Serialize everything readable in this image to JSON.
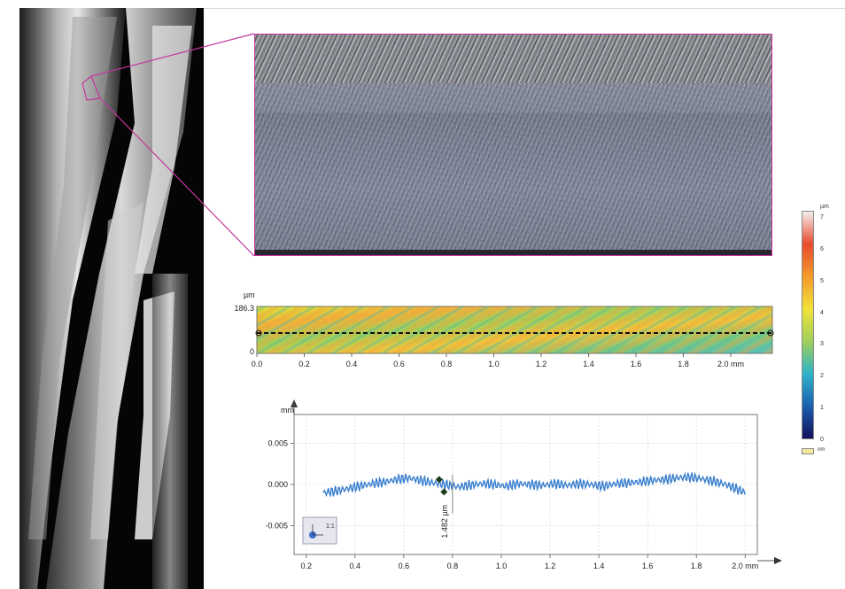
{
  "colormap": {
    "unit": "µm",
    "ticks": [
      "7",
      "6",
      "5",
      "4",
      "3",
      "2",
      "1",
      "0"
    ],
    "swatch_label": "nm",
    "colors": [
      "#f4eeee",
      "#e84a2c",
      "#f39a2c",
      "#f2e23a",
      "#9fd05a",
      "#2fb3c8",
      "#1b5fb0",
      "#13105a"
    ]
  },
  "topo_map": {
    "unit": "µm",
    "y_ticks": [
      "186.3",
      "0"
    ],
    "x_ticks": [
      "0.0",
      "0.2",
      "0.4",
      "0.6",
      "0.8",
      "1.0",
      "1.2",
      "1.4",
      "1.6",
      "1.8",
      "2.0 mm"
    ]
  },
  "profile": {
    "y_unit": "mm",
    "y_ticks": [
      "0.005",
      "0.000",
      "-0.005"
    ],
    "x_ticks": [
      "0.2",
      "0.4",
      "0.6",
      "0.8",
      "1.0",
      "1.2",
      "1.4",
      "1.6",
      "1.8",
      "2.0 mm"
    ],
    "measurement_label": "1.482 µm",
    "scale_badge": "1:1",
    "line_color": "#3a7fcf"
  },
  "chart_data": {
    "type": "line",
    "title": "",
    "xlabel": "mm",
    "ylabel": "mm",
    "xlim": [
      0.15,
      2.05
    ],
    "ylim": [
      -0.0085,
      0.0085
    ],
    "x": [
      0.27,
      0.32,
      0.37,
      0.42,
      0.47,
      0.52,
      0.57,
      0.62,
      0.67,
      0.72,
      0.77,
      0.82,
      0.87,
      0.92,
      0.97,
      1.02,
      1.07,
      1.12,
      1.17,
      1.22,
      1.27,
      1.32,
      1.37,
      1.42,
      1.47,
      1.52,
      1.57,
      1.62,
      1.67,
      1.72,
      1.77,
      1.82,
      1.87,
      1.92,
      1.97,
      2.0
    ],
    "series": [
      {
        "values": [
          -0.001,
          -0.0008,
          -0.0005,
          -0.0002,
          0.0001,
          0.0003,
          0.0006,
          0.0008,
          0.0005,
          0.0002,
          0.0,
          -0.0003,
          -0.0001,
          0.0001,
          0.0,
          -0.0002,
          0.0001,
          0.0,
          -0.0001,
          0.0001,
          -0.0001,
          0.0001,
          0.0,
          -0.0002,
          0.0001,
          0.0002,
          0.0003,
          0.0005,
          0.0006,
          0.0008,
          0.0009,
          0.0007,
          0.0004,
          0.0,
          -0.0006,
          -0.001
        ]
      }
    ],
    "markers": [
      {
        "x": 0.745,
        "y": 0.0006
      },
      {
        "x": 0.765,
        "y": -0.0009
      }
    ]
  }
}
